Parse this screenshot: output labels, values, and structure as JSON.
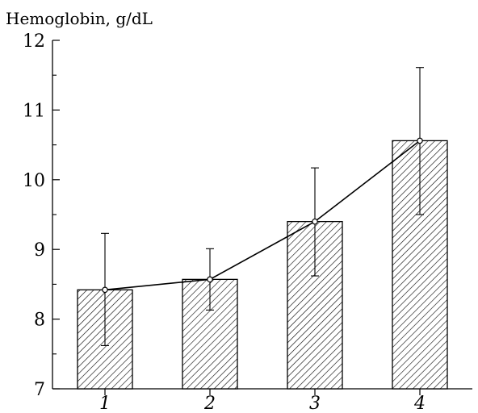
{
  "chart_data": {
    "type": "bar",
    "title": "",
    "xlabel": "",
    "ylabel": "Hemoglobin, g/dL",
    "ylim": [
      7,
      12
    ],
    "yticks": [
      7,
      8,
      9,
      10,
      11,
      12
    ],
    "categories": [
      "1",
      "2",
      "3",
      "4"
    ],
    "values": [
      8.42,
      8.57,
      9.4,
      10.56
    ],
    "error_upper": [
      9.23,
      9.01,
      10.17,
      11.61
    ],
    "error_lower": [
      7.62,
      8.13,
      8.62,
      9.5
    ],
    "overlay_line": true,
    "bar_pattern": "diagonal-hatch",
    "grid": false,
    "colors": {
      "stroke": "#000000",
      "fill": "#ffffff"
    }
  }
}
